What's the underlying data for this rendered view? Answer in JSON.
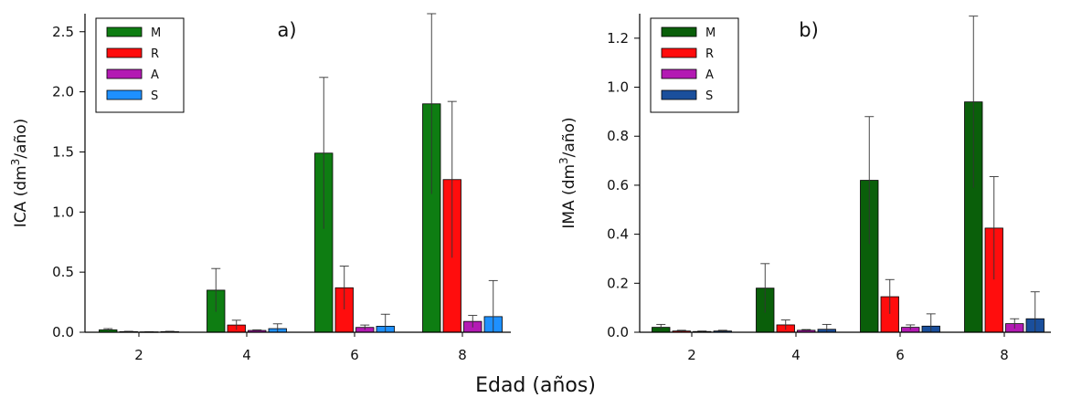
{
  "figure": {
    "xlabel": "Edad (años)"
  },
  "chart_data": [
    {
      "type": "bar",
      "panel_label": "a)",
      "ylabel_pre": "ICA (dm",
      "ylabel_sup": "3",
      "ylabel_post": "/año)",
      "categories": [
        "2",
        "4",
        "6",
        "8"
      ],
      "ylim": [
        0,
        2.65
      ],
      "yticks": [
        0.0,
        0.5,
        1.0,
        1.5,
        2.0,
        2.5
      ],
      "ytick_labels": [
        "0.0",
        "0.5",
        "1.0",
        "1.5",
        "2.0",
        "2.5"
      ],
      "legend_position": "top-left",
      "series": [
        {
          "name": "M",
          "color": "#0e7d12",
          "values": [
            0.02,
            0.35,
            1.49,
            1.9
          ],
          "errors": [
            0.01,
            0.18,
            0.63,
            0.75
          ]
        },
        {
          "name": "R",
          "color": "#ff0d0d",
          "values": [
            0.005,
            0.06,
            0.37,
            1.27
          ],
          "errors": [
            0.003,
            0.04,
            0.18,
            0.65
          ]
        },
        {
          "name": "A",
          "color": "#b31ab3",
          "values": [
            0.003,
            0.015,
            0.04,
            0.09
          ],
          "errors": [
            0.002,
            0.005,
            0.02,
            0.05
          ]
        },
        {
          "name": "S",
          "color": "#1e90ff",
          "values": [
            0.005,
            0.03,
            0.05,
            0.13
          ],
          "errors": [
            0.003,
            0.04,
            0.1,
            0.3
          ]
        }
      ]
    },
    {
      "type": "bar",
      "panel_label": "b)",
      "ylabel_pre": "IMA (dm",
      "ylabel_sup": "3",
      "ylabel_post": "/año)",
      "categories": [
        "2",
        "4",
        "6",
        "8"
      ],
      "ylim": [
        0,
        1.3
      ],
      "yticks": [
        0.0,
        0.2,
        0.4,
        0.6,
        0.8,
        1.0,
        1.2
      ],
      "ytick_labels": [
        "0.0",
        "0.2",
        "0.4",
        "0.6",
        "0.8",
        "1.0",
        "1.2"
      ],
      "legend_position": "top-left",
      "series": [
        {
          "name": "M",
          "color": "#0a5f0a",
          "values": [
            0.02,
            0.18,
            0.62,
            0.94
          ],
          "errors": [
            0.012,
            0.1,
            0.26,
            0.35
          ]
        },
        {
          "name": "R",
          "color": "#ff0d0d",
          "values": [
            0.005,
            0.03,
            0.145,
            0.425
          ],
          "errors": [
            0.003,
            0.02,
            0.07,
            0.21
          ]
        },
        {
          "name": "A",
          "color": "#b31ab3",
          "values": [
            0.003,
            0.008,
            0.02,
            0.035
          ],
          "errors": [
            0.002,
            0.003,
            0.01,
            0.02
          ]
        },
        {
          "name": "S",
          "color": "#1a4f9c",
          "values": [
            0.005,
            0.012,
            0.025,
            0.055
          ],
          "errors": [
            0.003,
            0.02,
            0.05,
            0.11
          ]
        }
      ]
    }
  ]
}
